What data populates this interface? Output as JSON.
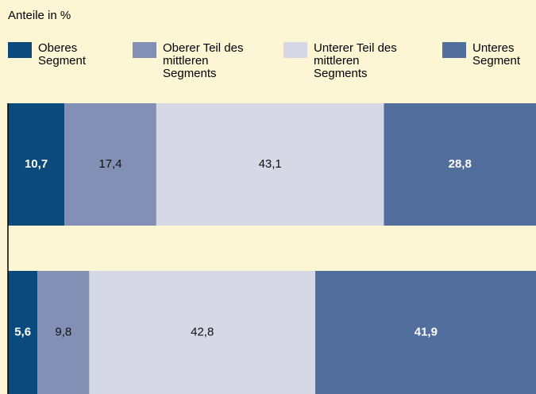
{
  "chart_data": {
    "type": "stacked-horizontal-bar",
    "title": "Anteile in %",
    "categories": [
      null,
      null
    ],
    "xlim": [
      0,
      100
    ],
    "series": [
      {
        "name": "Oberes Segment",
        "color": "#0b4a7d",
        "values": [
          10.7,
          5.6
        ],
        "value_labels": [
          "10,7",
          "5,6"
        ]
      },
      {
        "name": "Oberer Teil des mittleren Segments",
        "color": "#8390b5",
        "values": [
          17.4,
          9.8
        ],
        "value_labels": [
          "17,4",
          "9,8"
        ]
      },
      {
        "name": "Unterer Teil des mittleren Segments",
        "color": "#d7d8e6",
        "values": [
          43.1,
          42.8
        ],
        "value_labels": [
          "43,1",
          "42,8"
        ]
      },
      {
        "name": "Unteres Segment",
        "color": "#526e9c",
        "values": [
          28.8,
          41.9
        ],
        "value_labels": [
          "28,8",
          "41,9"
        ]
      }
    ]
  }
}
